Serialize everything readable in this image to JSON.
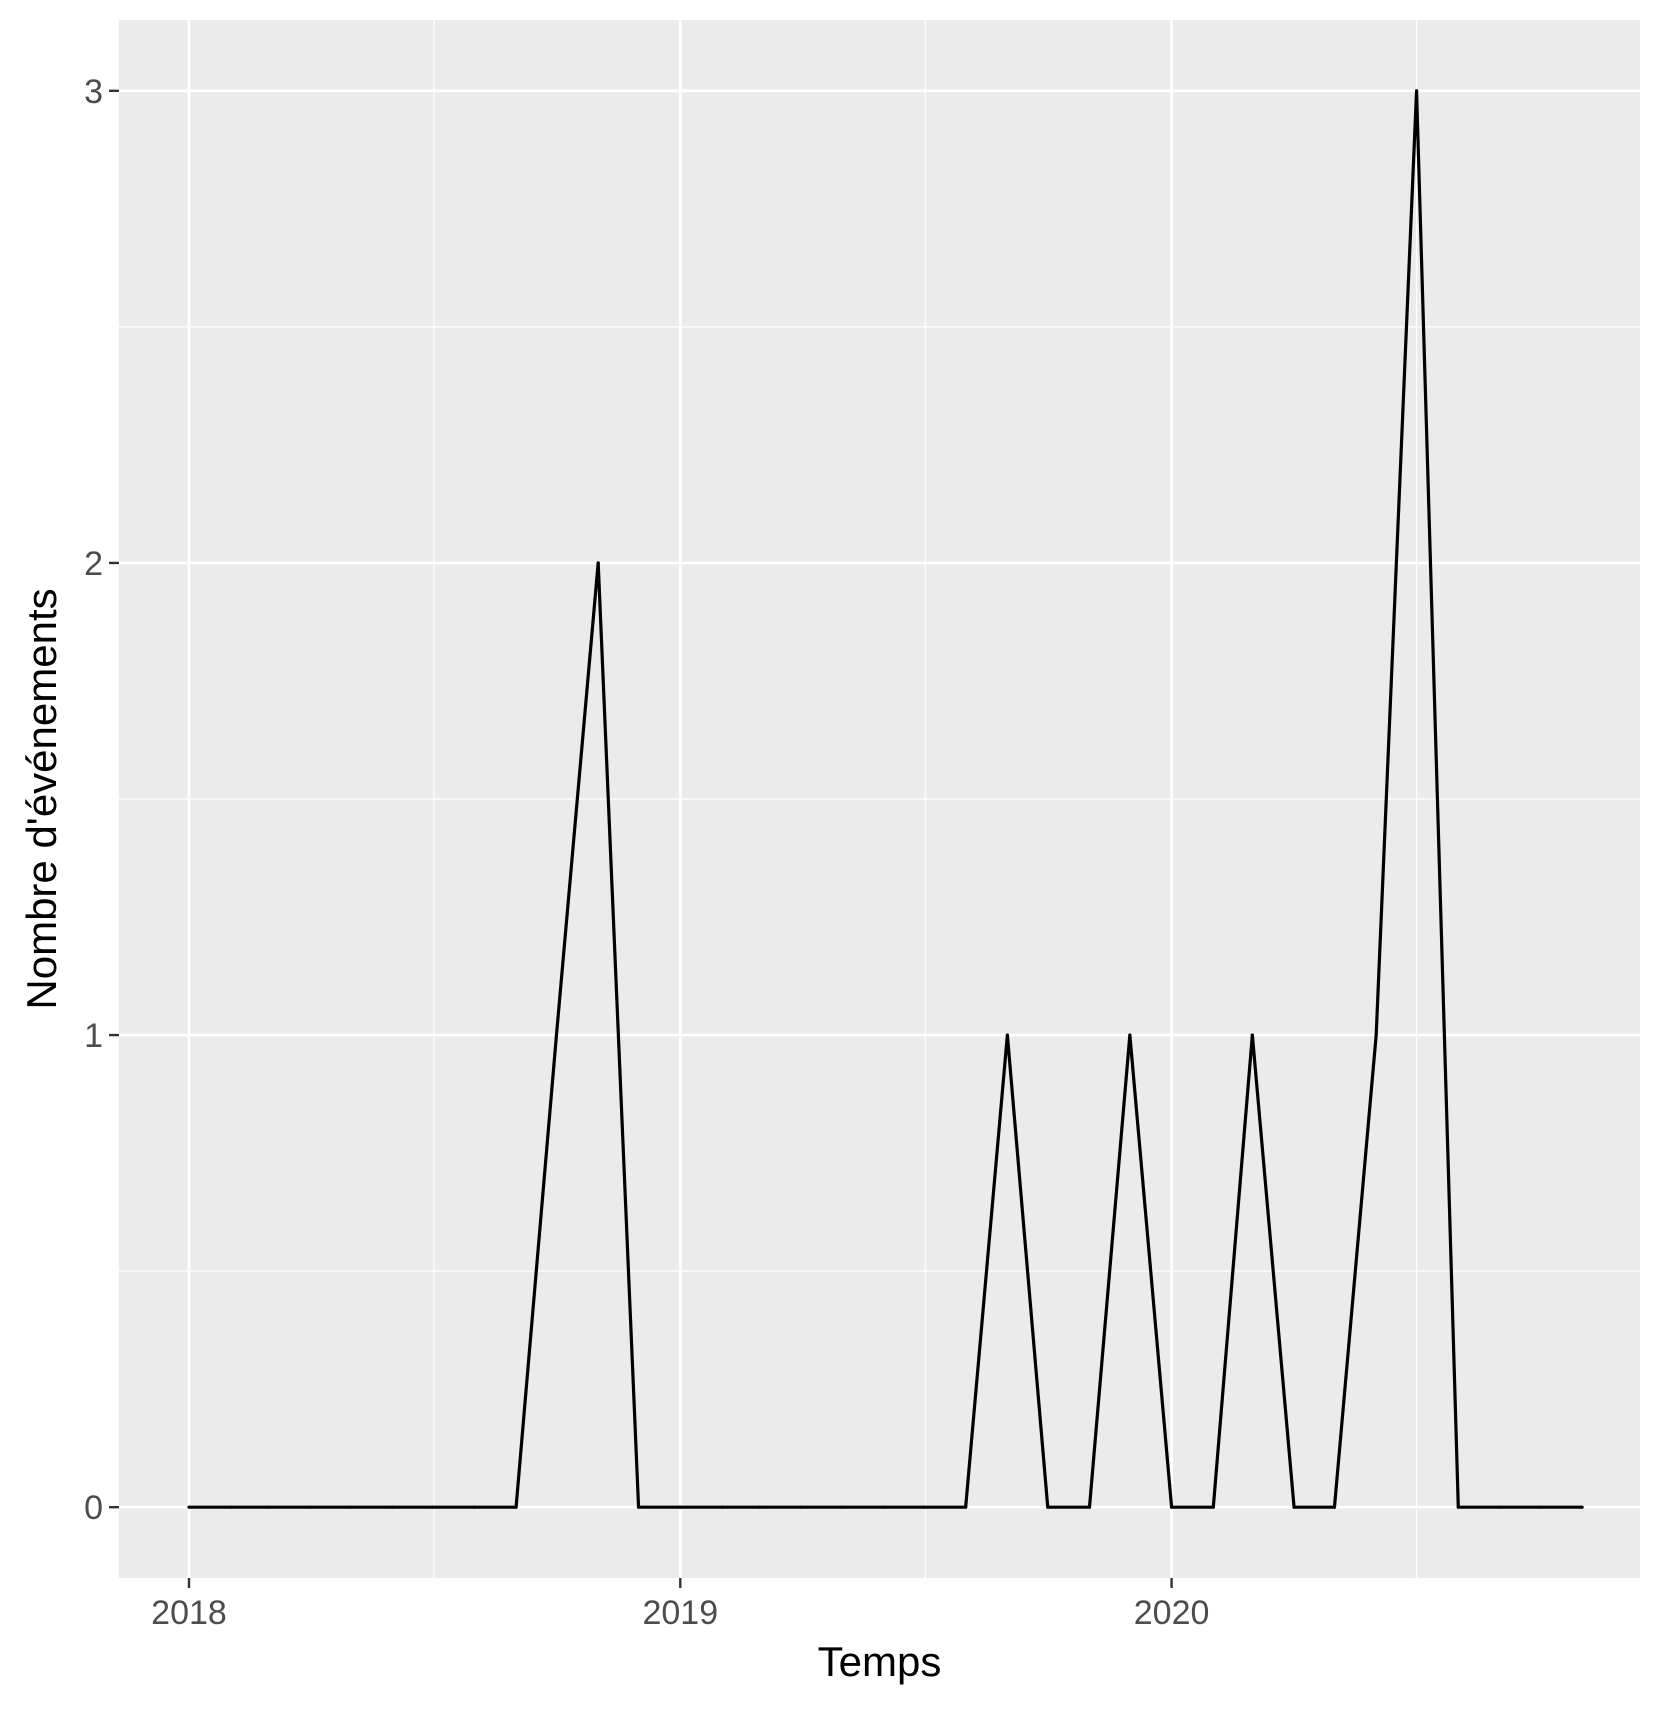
{
  "chart_data": {
    "type": "line",
    "title": "",
    "xlabel": "Temps",
    "ylabel": "Nombre d'événements",
    "x_tick_labels": [
      "2018",
      "2019",
      "2020"
    ],
    "y_tick_labels": [
      "0",
      "1",
      "2",
      "3"
    ],
    "xlim": [
      "2017-11-10",
      "2020-12-14"
    ],
    "ylim": [
      -0.15,
      3.15
    ],
    "y_ticks": [
      0,
      1,
      2,
      3
    ],
    "y_minor_ticks": [
      0.5,
      1.5,
      2.5
    ],
    "x_ticks": [
      "2018-01-01",
      "2019-01-01",
      "2020-01-01"
    ],
    "x_minor_ticks": [
      "2018-07-02",
      "2019-07-02",
      "2020-07-01"
    ],
    "grid": true,
    "background_color": "#ebebeb",
    "grid_color": "#ffffff",
    "line_color": "#000000",
    "series": [
      {
        "x": [
          "2018-01-01",
          "2018-02-01",
          "2018-03-01",
          "2018-04-01",
          "2018-05-01",
          "2018-06-01",
          "2018-07-01",
          "2018-08-01",
          "2018-09-01",
          "2018-10-01",
          "2018-11-01",
          "2018-12-01",
          "2019-01-01",
          "2019-02-01",
          "2019-03-01",
          "2019-04-01",
          "2019-05-01",
          "2019-06-01",
          "2019-07-01",
          "2019-08-01",
          "2019-09-01",
          "2019-10-01",
          "2019-11-01",
          "2019-12-01",
          "2020-01-01",
          "2020-02-01",
          "2020-03-01",
          "2020-04-01",
          "2020-05-01",
          "2020-06-01",
          "2020-07-01",
          "2020-08-01",
          "2020-09-01",
          "2020-10-01",
          "2020-11-01"
        ],
        "values": [
          0,
          0,
          0,
          0,
          0,
          0,
          0,
          0,
          0,
          1,
          2,
          0,
          0,
          0,
          0,
          0,
          0,
          0,
          0,
          0,
          1,
          0,
          0,
          1,
          0,
          0,
          1,
          0,
          0,
          1,
          3,
          0,
          0,
          0,
          0
        ]
      }
    ]
  }
}
